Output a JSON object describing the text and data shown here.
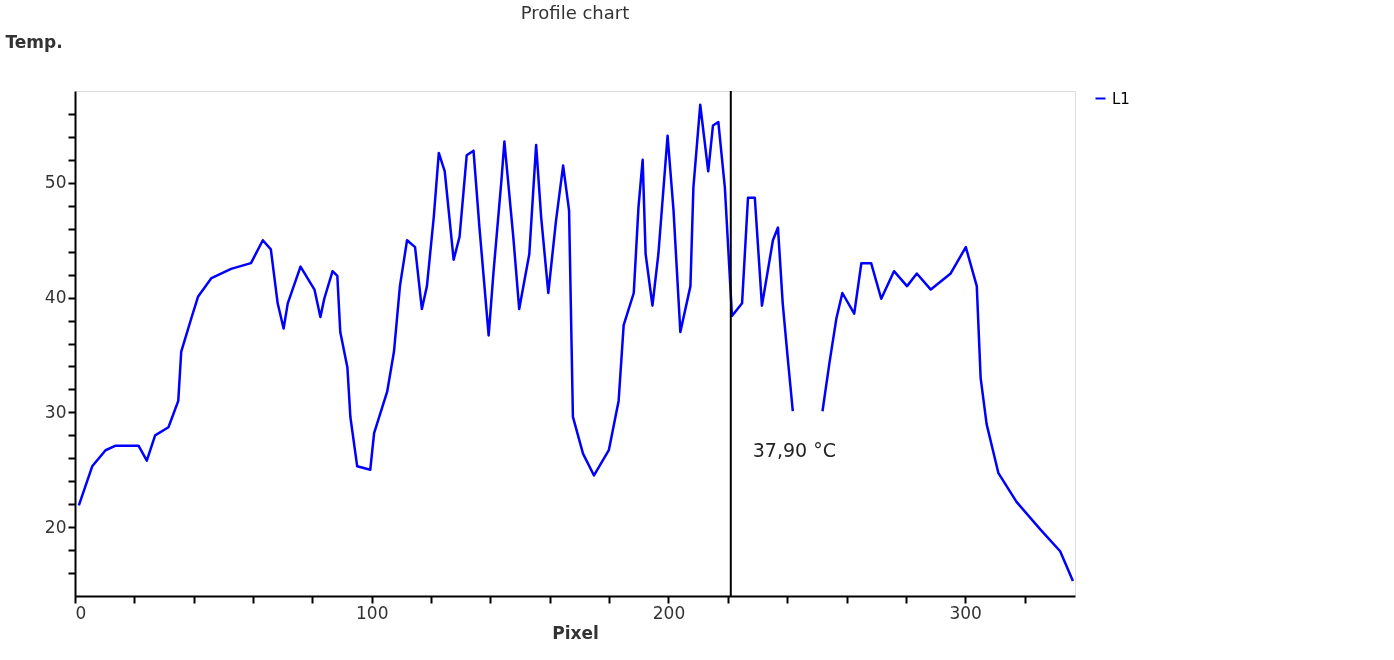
{
  "chart_data": {
    "type": "line",
    "title": "Profile chart",
    "xlabel": "Pixel",
    "ylabel": "Temp.",
    "x": [
      1.3,
      5.8,
      10.3,
      13.7,
      21.4,
      24.2,
      27,
      31.5,
      34.8,
      35.8,
      39.2,
      41.5,
      46,
      52.6,
      59.3,
      63.3,
      66,
      68.3,
      70.3,
      71.7,
      76,
      80.7,
      82.7,
      84,
      86.8,
      88.4,
      89.4,
      91.8,
      92.8,
      95.1,
      99.5,
      100.8,
      105.2,
      107.5,
      109.5,
      111.9,
      114.6,
      116.9,
      118.6,
      120.9,
      122.6,
      124.6,
      127.6,
      129.6,
      132,
      134.3,
      136.3,
      139.4,
      141,
      143.7,
      144.7,
      147.7,
      149.7,
      153.1,
      155.4,
      157.1,
      159.5,
      162.1,
      164.5,
      166.5,
      167.8,
      171.2,
      174.9,
      179.9,
      183.2,
      184.9,
      188.3,
      189.9,
      191.3,
      192.3,
      194.6,
      196.6,
      199.7,
      201.7,
      204,
      207.4,
      208.4,
      210.7,
      213.4,
      215,
      216.8,
      219,
      221.4,
      224.8,
      226.8,
      229.1,
      231.5,
      235.2,
      236.9,
      238.5,
      240.2,
      241.9,
      246,
      251.9,
      254.3,
      256.6,
      258.6,
      262.6,
      265,
      268.3,
      271.7,
      276,
      280.4,
      283.7,
      288.4,
      295.1,
      300.2,
      303.9,
      305.2,
      307.2,
      311.2,
      317.3,
      325.3,
      332,
      336.3
    ],
    "series": [
      {
        "name": "L1",
        "color": "#0000ff",
        "values": [
          21.9,
          25.3,
          26.7,
          27.1,
          27.1,
          25.8,
          28,
          28.7,
          31,
          35.3,
          38.2,
          40.1,
          41.7,
          42.5,
          43,
          45,
          44.2,
          39.5,
          37.3,
          39.5,
          42.7,
          40.7,
          38.3,
          39.9,
          42.3,
          41.9,
          37,
          33.9,
          29.6,
          25.3,
          25,
          28.2,
          31.8,
          35.3,
          41,
          45,
          44.4,
          39,
          41,
          47,
          52.6,
          51,
          43.3,
          45.3,
          52.4,
          52.8,
          46.1,
          36.7,
          42.1,
          50.2,
          53.6,
          45.3,
          39,
          43.8,
          53.3,
          47,
          40.4,
          46.7,
          51.5,
          47.6,
          29.6,
          26.4,
          24.5,
          26.7,
          31,
          37.6,
          40.4,
          47.9,
          52,
          43.8,
          39.3,
          43.8,
          54.1,
          47.6,
          37,
          41,
          49.6,
          56.8,
          51,
          55,
          55.3,
          49.6,
          38.4,
          39.5,
          48.7,
          48.7,
          39.3,
          45,
          46.1,
          39.5,
          34.7,
          30.1,
          null,
          30.1,
          34.4,
          38.2,
          40.4,
          38.6,
          43,
          43,
          39.9,
          42.3,
          41,
          42.1,
          40.7,
          42.1,
          44.4,
          41,
          33,
          29,
          24.7,
          22.2,
          19.8,
          17.9,
          15.3
        ]
      }
    ],
    "xlim": [
      0,
      337
    ],
    "ylim": [
      14,
      58
    ],
    "xticks": [
      0,
      {
        "value": 20,
        "label": null
      },
      {
        "value": 40,
        "label": null
      },
      {
        "value": 60,
        "label": null
      },
      {
        "value": 80,
        "label": null
      },
      100,
      {
        "value": 120,
        "label": null
      },
      {
        "value": 140,
        "label": null
      },
      {
        "value": 160,
        "label": null
      },
      {
        "value": 180,
        "label": null
      },
      200,
      {
        "value": 220,
        "label": null
      },
      {
        "value": 240,
        "label": null
      },
      {
        "value": 260,
        "label": null
      },
      {
        "value": 280,
        "label": null
      },
      300,
      {
        "value": 320,
        "label": null
      }
    ],
    "yticks": [
      {
        "value": 16,
        "label": null
      },
      {
        "value": 18,
        "label": null
      },
      20,
      {
        "value": 22,
        "label": null
      },
      {
        "value": 24,
        "label": null
      },
      {
        "value": 26,
        "label": null
      },
      {
        "value": 28,
        "label": null
      },
      30,
      {
        "value": 32,
        "label": null
      },
      {
        "value": 34,
        "label": null
      },
      {
        "value": 36,
        "label": null
      },
      {
        "value": 38,
        "label": null
      },
      40,
      {
        "value": 42,
        "label": null
      },
      {
        "value": 44,
        "label": null
      },
      {
        "value": 46,
        "label": null
      },
      {
        "value": 48,
        "label": null
      },
      50,
      {
        "value": 52,
        "label": null
      },
      {
        "value": 54,
        "label": null
      },
      {
        "value": 56,
        "label": null
      }
    ],
    "ref_lines": [
      {
        "axis": "x",
        "value": 221,
        "label": "37,90 °C",
        "color": "#000000"
      }
    ],
    "grid": false,
    "legend": "right",
    "marker": "none",
    "line_style": "solid"
  }
}
